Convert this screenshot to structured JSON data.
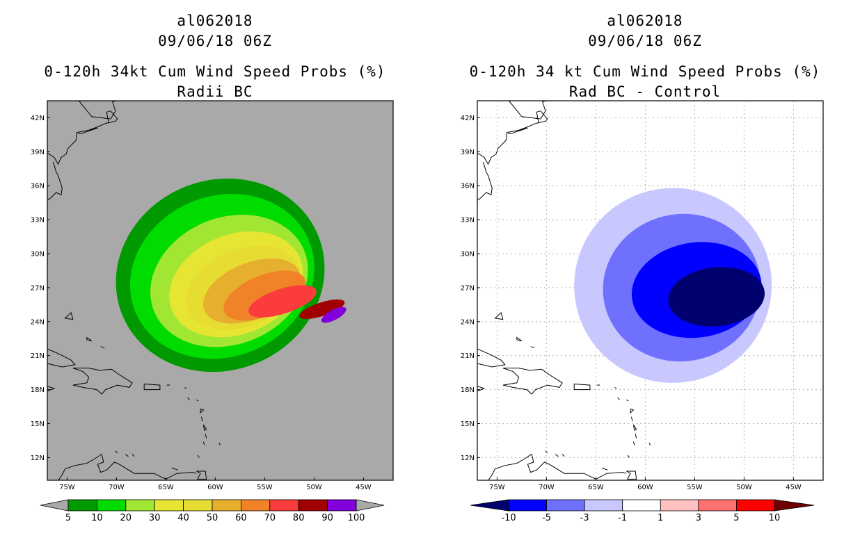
{
  "chart_data": [
    {
      "type": "heatmap",
      "title_lines": [
        "al062018",
        "09/06/18 06Z",
        "0-120h 34kt Cum Wind Speed Probs (%)",
        "Radii BC"
      ],
      "xlabel": "",
      "ylabel": "",
      "xlim": [
        -77,
        -42
      ],
      "ylim": [
        10,
        43.5
      ],
      "x_ticks": [
        "75W",
        "70W",
        "65W",
        "60W",
        "55W",
        "50W",
        "45W"
      ],
      "y_ticks": [
        "12N",
        "15N",
        "18N",
        "21N",
        "24N",
        "27N",
        "30N",
        "33N",
        "36N",
        "39N",
        "42N"
      ],
      "grid": false,
      "background_color": "#a9a9a9",
      "colorbar": {
        "labels": [
          "5",
          "10",
          "20",
          "30",
          "40",
          "50",
          "60",
          "70",
          "80",
          "90",
          "100"
        ],
        "colors": [
          "#009a00",
          "#00dc00",
          "#a0e632",
          "#e6e632",
          "#e6dc32",
          "#e6af2d",
          "#f08228",
          "#fa3c3c",
          "#a00000",
          "#8200dc"
        ],
        "end_arrow_color": "#a9a9a9"
      },
      "contours": [
        {
          "value": "5",
          "color": "#009a00",
          "center": [
            -59.5,
            28.1
          ],
          "rx": 10.7,
          "ry": 8.4,
          "rotation_deg": -22
        },
        {
          "value": "10",
          "color": "#00dc00",
          "center": [
            -59.3,
            28.0
          ],
          "rx": 9.5,
          "ry": 7.1,
          "rotation_deg": -22
        },
        {
          "value": "20",
          "color": "#a0e632",
          "center": [
            -58.6,
            27.6
          ],
          "rx": 8.2,
          "ry": 5.6,
          "rotation_deg": -22
        },
        {
          "value": "30",
          "color": "#e6e632",
          "center": [
            -57.9,
            27.3
          ],
          "rx": 7.0,
          "ry": 4.4,
          "rotation_deg": -22
        },
        {
          "value": "40",
          "color": "#e6dc32",
          "center": [
            -57.2,
            27.0
          ],
          "rx": 6.0,
          "ry": 3.4,
          "rotation_deg": -22
        },
        {
          "value": "50",
          "color": "#e6af2d",
          "center": [
            -56.3,
            26.7
          ],
          "rx": 5.2,
          "ry": 2.5,
          "rotation_deg": -22
        },
        {
          "value": "60",
          "color": "#f08228",
          "center": [
            -55.0,
            26.3
          ],
          "rx": 4.4,
          "ry": 1.8,
          "rotation_deg": -22
        },
        {
          "value": "70",
          "color": "#fa3c3c",
          "center": [
            -53.2,
            25.8
          ],
          "rx": 3.6,
          "ry": 1.1,
          "rotation_deg": -18
        },
        {
          "value": "80",
          "color": "#a00000",
          "center": [
            -49.2,
            25.1
          ],
          "rx": 2.4,
          "ry": 0.6,
          "rotation_deg": -18
        },
        {
          "value": "90",
          "color": "#8200dc",
          "center": [
            -48.0,
            24.6
          ],
          "rx": 1.4,
          "ry": 0.45,
          "rotation_deg": -28
        }
      ]
    },
    {
      "type": "heatmap",
      "title_lines": [
        "al062018",
        "09/06/18 06Z",
        "0-120h 34 kt Cum Wind Speed Probs (%)",
        "Rad BC - Control"
      ],
      "xlabel": "",
      "ylabel": "",
      "xlim": [
        -77,
        -42
      ],
      "ylim": [
        10,
        43.5
      ],
      "x_ticks": [
        "75W",
        "70W",
        "65W",
        "60W",
        "55W",
        "50W",
        "45W"
      ],
      "y_ticks": [
        "12N",
        "15N",
        "18N",
        "21N",
        "24N",
        "27N",
        "30N",
        "33N",
        "36N",
        "39N",
        "42N"
      ],
      "grid": true,
      "background_color": "#ffffff",
      "colorbar": {
        "labels": [
          "-10",
          "-5",
          "-3",
          "-1",
          "1",
          "3",
          "5",
          "10"
        ],
        "colors": [
          "#0000ff",
          "#7070ff",
          "#c8c8ff",
          "#ffffff",
          "#ffc0c0",
          "#ff7070",
          "#ff0000"
        ],
        "left_arrow_color": "#00006e",
        "right_arrow_color": "#6e0000"
      },
      "contours": [
        {
          "value": "-1",
          "color": "#c8c8ff",
          "center": [
            -57.2,
            27.2
          ],
          "rx": 10.0,
          "ry": 8.6,
          "rotation_deg": -10
        },
        {
          "value": "-3",
          "color": "#7070ff",
          "center": [
            -56.3,
            27.0
          ],
          "rx": 8.0,
          "ry": 6.5,
          "rotation_deg": -10
        },
        {
          "value": "-5",
          "color": "#0000ff",
          "center": [
            -54.8,
            26.8
          ],
          "rx": 6.6,
          "ry": 4.2,
          "rotation_deg": -8
        },
        {
          "value": "-10",
          "color": "#00006e",
          "center": [
            -52.8,
            26.2
          ],
          "rx": 4.9,
          "ry": 2.6,
          "rotation_deg": -6
        }
      ]
    }
  ]
}
